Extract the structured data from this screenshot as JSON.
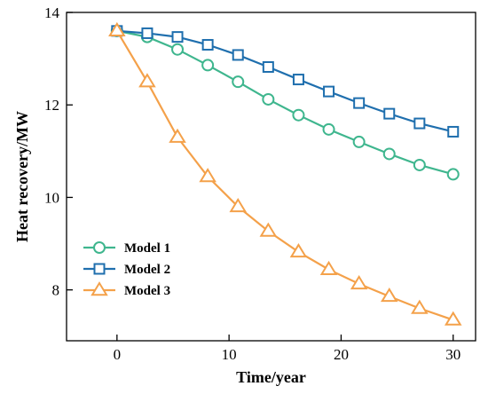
{
  "chart_data": {
    "type": "line",
    "xlabel": "Time/year",
    "ylabel": "Heat recovery/MW",
    "xlim": [
      -4.5,
      32
    ],
    "ylim": [
      6.9,
      14
    ],
    "xticks": [
      0,
      10,
      20,
      30
    ],
    "yticks": [
      8,
      10,
      12,
      14
    ],
    "grid": false,
    "legend_position": "bottom-left",
    "x": [
      0,
      2.7,
      5.4,
      8.1,
      10.8,
      13.5,
      16.2,
      18.9,
      21.6,
      24.3,
      27.0,
      30.0
    ],
    "series": [
      {
        "name": "Model 1",
        "color": "#3fb68e",
        "marker": "circle",
        "values": [
          13.6,
          13.47,
          13.2,
          12.86,
          12.5,
          12.12,
          11.78,
          11.47,
          11.2,
          10.94,
          10.7,
          10.5
        ]
      },
      {
        "name": "Model 2",
        "color": "#1f6fae",
        "marker": "square",
        "values": [
          13.6,
          13.55,
          13.47,
          13.3,
          13.08,
          12.82,
          12.55,
          12.29,
          12.04,
          11.81,
          11.6,
          11.42
        ]
      },
      {
        "name": "Model 3",
        "color": "#f4a14a",
        "marker": "triangle",
        "values": [
          13.6,
          12.5,
          11.3,
          10.45,
          9.8,
          9.27,
          8.82,
          8.44,
          8.13,
          7.86,
          7.6,
          7.35
        ]
      }
    ]
  }
}
